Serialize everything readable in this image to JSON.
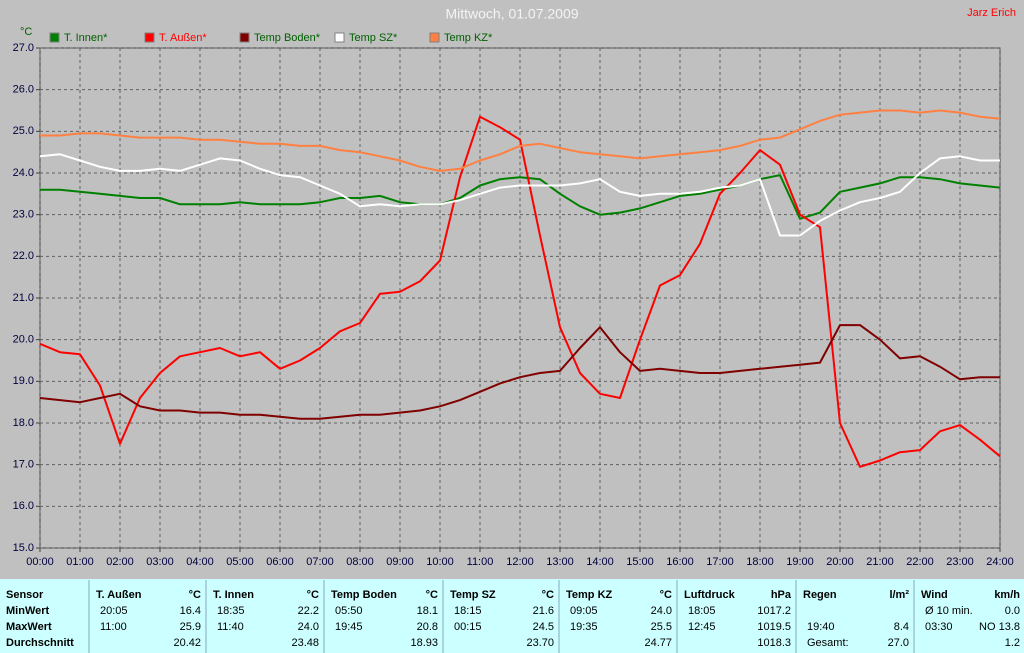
{
  "chart_data": {
    "type": "line",
    "title": "Mittwoch, 01.07.2009",
    "annotation": "Jarz Erich",
    "y_label": "°C",
    "x": [
      0,
      0.5,
      1,
      1.5,
      2,
      2.5,
      3,
      3.5,
      4,
      4.5,
      5,
      5.5,
      6,
      6.5,
      7,
      7.5,
      8,
      8.5,
      9,
      9.5,
      10,
      10.5,
      11,
      11.5,
      12,
      12.5,
      13,
      13.5,
      14,
      14.5,
      15,
      15.5,
      16,
      16.5,
      17,
      17.5,
      18,
      18.5,
      19,
      19.5,
      20,
      20.5,
      21,
      21.5,
      22,
      22.5,
      23,
      23.5,
      24
    ],
    "series": [
      {
        "name": "T. Innen*",
        "color": "#008000",
        "values": [
          23.6,
          23.6,
          23.55,
          23.5,
          23.45,
          23.4,
          23.4,
          23.25,
          23.25,
          23.25,
          23.3,
          23.25,
          23.25,
          23.25,
          23.3,
          23.4,
          23.4,
          23.45,
          23.3,
          23.25,
          23.25,
          23.4,
          23.7,
          23.85,
          23.9,
          23.85,
          23.5,
          23.2,
          23.0,
          23.05,
          23.15,
          23.3,
          23.45,
          23.5,
          23.6,
          23.7,
          23.85,
          23.95,
          22.9,
          23.05,
          23.55,
          23.65,
          23.75,
          23.9,
          23.9,
          23.85,
          23.75,
          23.7,
          23.65
        ]
      },
      {
        "name": "T. Außen*",
        "color": "#ff0000",
        "values": [
          19.9,
          19.7,
          19.65,
          18.9,
          17.5,
          18.6,
          19.2,
          19.6,
          19.7,
          19.8,
          19.6,
          19.7,
          19.3,
          19.5,
          19.8,
          20.2,
          20.4,
          21.1,
          21.15,
          21.4,
          21.9,
          23.9,
          25.35,
          25.1,
          24.8,
          22.5,
          20.3,
          19.2,
          18.7,
          18.6,
          20.0,
          21.3,
          21.55,
          22.3,
          23.5,
          24.0,
          24.55,
          24.2,
          23.0,
          22.7,
          18.0,
          16.95,
          17.1,
          17.3,
          17.35,
          17.8,
          17.95,
          17.6,
          17.2
        ]
      },
      {
        "name": "Temp Boden*",
        "color": "#800000",
        "values": [
          18.6,
          18.55,
          18.5,
          18.6,
          18.7,
          18.4,
          18.3,
          18.3,
          18.25,
          18.25,
          18.2,
          18.2,
          18.15,
          18.1,
          18.1,
          18.15,
          18.2,
          18.2,
          18.25,
          18.3,
          18.4,
          18.55,
          18.75,
          18.95,
          19.1,
          19.2,
          19.25,
          19.8,
          20.3,
          19.7,
          19.25,
          19.3,
          19.25,
          19.2,
          19.2,
          19.25,
          19.3,
          19.35,
          19.4,
          19.45,
          20.35,
          20.35,
          20.0,
          19.55,
          19.6,
          19.35,
          19.05,
          19.1,
          19.1
        ]
      },
      {
        "name": "Temp SZ*",
        "color": "#ffffff",
        "values": [
          24.4,
          24.45,
          24.3,
          24.15,
          24.05,
          24.05,
          24.1,
          24.05,
          24.2,
          24.35,
          24.3,
          24.1,
          23.95,
          23.9,
          23.7,
          23.5,
          23.2,
          23.25,
          23.2,
          23.25,
          23.25,
          23.35,
          23.5,
          23.65,
          23.7,
          23.7,
          23.7,
          23.75,
          23.85,
          23.55,
          23.45,
          23.5,
          23.5,
          23.55,
          23.65,
          23.7,
          23.85,
          22.5,
          22.5,
          22.85,
          23.1,
          23.3,
          23.4,
          23.55,
          24.0,
          24.35,
          24.4,
          24.3,
          24.3
        ]
      },
      {
        "name": "Temp KZ*",
        "color": "#ff8040",
        "values": [
          24.9,
          24.9,
          24.95,
          24.95,
          24.9,
          24.85,
          24.85,
          24.85,
          24.8,
          24.8,
          24.75,
          24.7,
          24.7,
          24.65,
          24.65,
          24.55,
          24.5,
          24.4,
          24.3,
          24.15,
          24.05,
          24.1,
          24.3,
          24.45,
          24.65,
          24.7,
          24.6,
          24.5,
          24.45,
          24.4,
          24.35,
          24.4,
          24.45,
          24.5,
          24.55,
          24.65,
          24.8,
          24.85,
          25.05,
          25.25,
          25.4,
          25.45,
          25.5,
          25.5,
          25.45,
          25.5,
          25.45,
          25.35,
          25.3
        ]
      }
    ],
    "xlim": [
      0,
      24
    ],
    "xticks": [
      {
        "value": 0,
        "label": "00:00"
      },
      {
        "value": 1,
        "label": "01:00"
      },
      {
        "value": 2,
        "label": "02:00"
      },
      {
        "value": 3,
        "label": "03:00"
      },
      {
        "value": 4,
        "label": "04:00"
      },
      {
        "value": 5,
        "label": "05:00"
      },
      {
        "value": 6,
        "label": "06:00"
      },
      {
        "value": 7,
        "label": "07:00"
      },
      {
        "value": 8,
        "label": "08:00"
      },
      {
        "value": 9,
        "label": "09:00"
      },
      {
        "value": 10,
        "label": "10:00"
      },
      {
        "value": 11,
        "label": "11:00"
      },
      {
        "value": 12,
        "label": "12:00"
      },
      {
        "value": 13,
        "label": "13:00"
      },
      {
        "value": 14,
        "label": "14:00"
      },
      {
        "value": 15,
        "label": "15:00"
      },
      {
        "value": 16,
        "label": "16:00"
      },
      {
        "value": 17,
        "label": "17:00"
      },
      {
        "value": 18,
        "label": "18:00"
      },
      {
        "value": 19,
        "label": "19:00"
      },
      {
        "value": 20,
        "label": "20:00"
      },
      {
        "value": 21,
        "label": "21:00"
      },
      {
        "value": 22,
        "label": "22:00"
      },
      {
        "value": 23,
        "label": "23:00"
      },
      {
        "value": 24,
        "label": "24:00"
      }
    ],
    "ylim": [
      15,
      27
    ],
    "yticks": [
      {
        "value": 15,
        "label": "15.0"
      },
      {
        "value": 16,
        "label": "16.0"
      },
      {
        "value": 17,
        "label": "17.0"
      },
      {
        "value": 18,
        "label": "18.0"
      },
      {
        "value": 19,
        "label": "19.0"
      },
      {
        "value": 20,
        "label": "20.0"
      },
      {
        "value": 21,
        "label": "21.0"
      },
      {
        "value": 22,
        "label": "22.0"
      },
      {
        "value": 23,
        "label": "23.0"
      },
      {
        "value": 24,
        "label": "24.0"
      },
      {
        "value": 25,
        "label": "25.0"
      },
      {
        "value": 26,
        "label": "26.0"
      },
      {
        "value": 27,
        "label": "27.0"
      }
    ],
    "grid": true
  },
  "table": {
    "sensor_header": "Sensor",
    "row_labels": [
      "MinWert",
      "MaxWert",
      "Durchschnitt"
    ],
    "groups": [
      {
        "name": "T. Außen",
        "unit": "°C",
        "cells": [
          [
            "20:05",
            "16.4"
          ],
          [
            "11:00",
            "25.9"
          ],
          [
            "20.42"
          ]
        ]
      },
      {
        "name": "T. Innen",
        "unit": "°C",
        "cells": [
          [
            "18:35",
            "22.2"
          ],
          [
            "11:40",
            "24.0"
          ],
          [
            "23.48"
          ]
        ]
      },
      {
        "name": "Temp Boden",
        "unit": "°C",
        "cells": [
          [
            "05:50",
            "18.1"
          ],
          [
            "19:45",
            "20.8"
          ],
          [
            "18.93"
          ]
        ]
      },
      {
        "name": "Temp SZ",
        "unit": "°C",
        "cells": [
          [
            "18:15",
            "21.6"
          ],
          [
            "00:15",
            "24.5"
          ],
          [
            "23.70"
          ]
        ]
      },
      {
        "name": "Temp KZ",
        "unit": "°C",
        "cells": [
          [
            "09:05",
            "24.0"
          ],
          [
            "19:35",
            "25.5"
          ],
          [
            "24.77"
          ]
        ]
      },
      {
        "name": "Luftdruck",
        "unit": "hPa",
        "cells": [
          [
            "18:05",
            "1017.2"
          ],
          [
            "12:45",
            "1019.5"
          ],
          [
            "1018.3"
          ]
        ]
      },
      {
        "name": "Regen",
        "unit": "l/m²",
        "cells": [
          [],
          [
            "19:40",
            "8.4"
          ],
          [
            "Gesamt:",
            "27.0"
          ]
        ]
      },
      {
        "name": "Wind",
        "unit": "km/h",
        "cells": [
          [
            "Ø 10 min.",
            "0.0"
          ],
          [
            "03:30",
            "NO 13.8"
          ],
          [
            "1.2"
          ]
        ]
      }
    ]
  }
}
